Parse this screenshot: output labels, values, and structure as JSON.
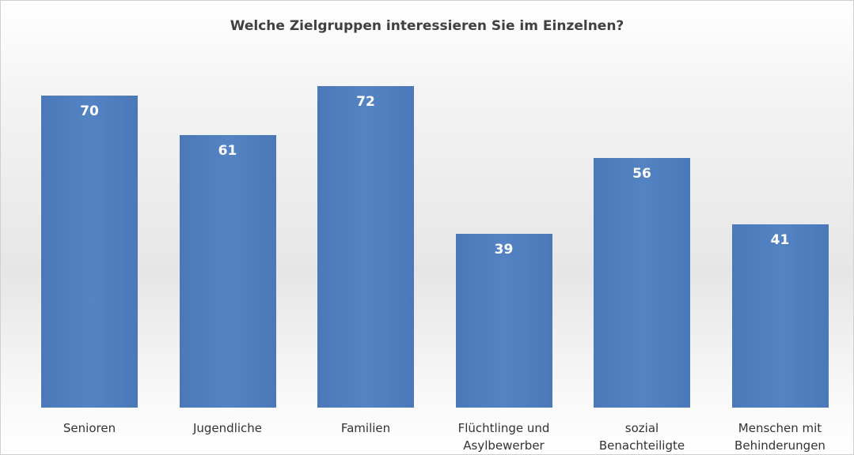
{
  "chart_data": {
    "type": "bar",
    "title": "Welche Zielgruppen interessieren Sie im Einzelnen?",
    "categories": [
      "Senioren",
      "Jugendliche",
      "Familien",
      "Flüchtlinge und Asylbewerber",
      "sozial Benachteiligte",
      "Menschen mit Behinderungen"
    ],
    "values": [
      70,
      61,
      72,
      39,
      56,
      41
    ],
    "color": "#4a78b8"
  }
}
